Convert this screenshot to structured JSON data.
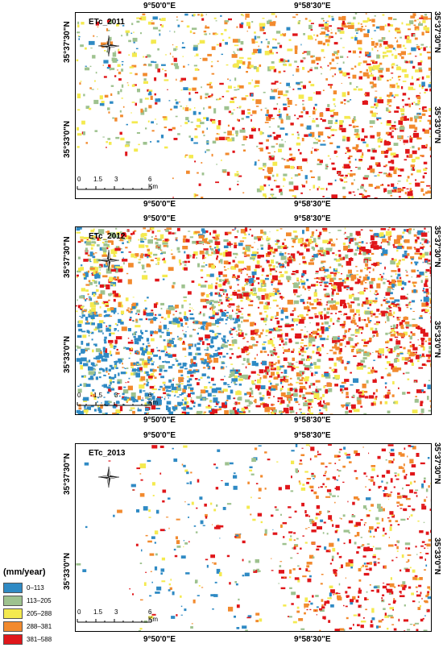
{
  "coords": {
    "lon_west": "9°50'0\"E",
    "lon_east": "9°58'30\"E",
    "lat_north": "35°37'30\"N",
    "lat_south": "35°33'0\"N"
  },
  "panels": [
    {
      "title": "ETc_2011",
      "year": 2011
    },
    {
      "title": "ETc_2012",
      "year": 2012
    },
    {
      "title": "ETc_2013",
      "year": 2013
    }
  ],
  "scale": {
    "labels": [
      "0",
      "1.5",
      "3",
      "6 Km"
    ]
  },
  "north_label": "N",
  "legend": {
    "title": "(mm/year)",
    "classes": [
      {
        "label": "0–113",
        "color": "#2f8ac4"
      },
      {
        "label": "113–205",
        "color": "#9ec28f"
      },
      {
        "label": "205–288",
        "color": "#f4ea4f"
      },
      {
        "label": "288–381",
        "color": "#f28a2e"
      },
      {
        "label": "381–588",
        "color": "#e0161a"
      }
    ]
  }
}
